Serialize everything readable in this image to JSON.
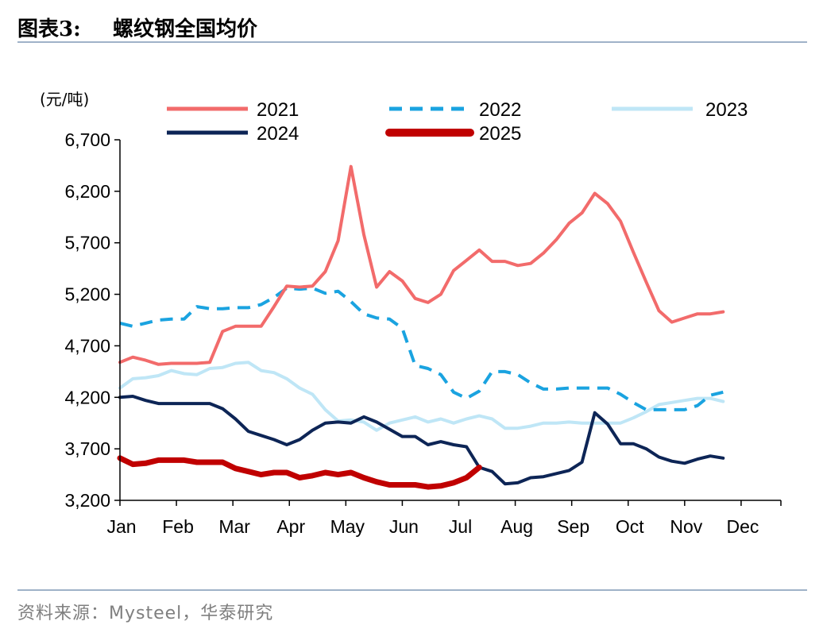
{
  "figure": {
    "label": "图表3:",
    "title": "螺纹钢全国均价"
  },
  "source": "资料来源：Mysteel，华泰研究",
  "colors": {
    "2021": "#f26b6b",
    "2022": "#1aa3e0",
    "2023": "#bfe6f6",
    "2024": "#0d2556",
    "2025": "#c00000",
    "axis": "#000000"
  },
  "chart_data": {
    "type": "line",
    "ylabel": "(元/吨)",
    "ylim": [
      3200,
      6700
    ],
    "yticks": [
      3200,
      3700,
      4200,
      4700,
      5200,
      5700,
      6200,
      6700
    ],
    "ytick_labels": [
      "3,200",
      "3,700",
      "4,200",
      "4,700",
      "5,200",
      "5,700",
      "6,200",
      "6,700"
    ],
    "xlim": [
      1,
      52.5
    ],
    "months": [
      {
        "label": "Jan",
        "week": 1
      },
      {
        "label": "Feb",
        "week": 5.4
      },
      {
        "label": "Mar",
        "week": 9.8
      },
      {
        "label": "Apr",
        "week": 14.2
      },
      {
        "label": "May",
        "week": 18.6
      },
      {
        "label": "Jun",
        "week": 23
      },
      {
        "label": "Jul",
        "week": 27.4
      },
      {
        "label": "Aug",
        "week": 31.8
      },
      {
        "label": "Sep",
        "week": 36.2
      },
      {
        "label": "Oct",
        "week": 40.6
      },
      {
        "label": "Nov",
        "week": 45
      },
      {
        "label": "Dec",
        "week": 49.4
      }
    ],
    "legend": [
      "2021",
      "2022",
      "2023",
      "2024",
      "2025"
    ],
    "series": [
      {
        "name": "2021",
        "style": "solid",
        "width": 4,
        "x": [
          1,
          2,
          3,
          4,
          5,
          6,
          7,
          8,
          9,
          10,
          11,
          12,
          13,
          14,
          15,
          16,
          17,
          18,
          19,
          20,
          21,
          22,
          23,
          24,
          25,
          26,
          27,
          28,
          29,
          30,
          31,
          32,
          33,
          34,
          35,
          36,
          37,
          38,
          39,
          40,
          41,
          42,
          43,
          44,
          45,
          46,
          47,
          48,
          49,
          50,
          51,
          52,
          53
        ],
        "values": [
          4540,
          4590,
          4560,
          4520,
          4530,
          4530,
          4530,
          4540,
          4840,
          4890,
          4890,
          4890,
          5080,
          5280,
          5270,
          5280,
          5420,
          5720,
          6440,
          5780,
          5270,
          5420,
          5330,
          5160,
          5120,
          5200,
          5430,
          5530,
          5630,
          5520,
          5520,
          5480,
          5500,
          5600,
          5730,
          5890,
          5990,
          6180,
          6080,
          5910,
          5610,
          5320,
          5040,
          4930,
          4970,
          5010,
          5010,
          5030,
          null,
          null,
          null,
          null,
          null
        ]
      },
      {
        "name": "2022",
        "style": "dashed",
        "width": 4,
        "x": [
          1,
          2,
          3,
          4,
          5,
          6,
          7,
          8,
          9,
          10,
          11,
          12,
          13,
          14,
          15,
          16,
          17,
          18,
          19,
          20,
          21,
          22,
          23,
          24,
          25,
          26,
          27,
          28,
          29,
          30,
          31,
          32,
          33,
          34,
          35,
          36,
          37,
          38,
          39,
          40,
          41,
          42,
          43,
          44,
          45,
          46,
          47,
          48,
          49,
          50,
          51,
          52
        ],
        "values": [
          4920,
          4890,
          4920,
          4950,
          4960,
          4960,
          5080,
          5060,
          5060,
          5070,
          5070,
          5100,
          5170,
          5260,
          5250,
          5260,
          5210,
          5230,
          5130,
          5010,
          4970,
          4960,
          4870,
          4510,
          4480,
          4420,
          4250,
          4190,
          4260,
          4450,
          4450,
          4420,
          4340,
          4280,
          4280,
          4290,
          4290,
          4290,
          4290,
          4230,
          4150,
          4080,
          4080,
          4080,
          4080,
          4120,
          4220,
          4250,
          null,
          null,
          null,
          null
        ]
      },
      {
        "name": "2023",
        "style": "solid",
        "width": 4,
        "x": [
          1,
          2,
          3,
          4,
          5,
          6,
          7,
          8,
          9,
          10,
          11,
          12,
          13,
          14,
          15,
          16,
          17,
          18,
          19,
          20,
          21,
          22,
          23,
          24,
          25,
          26,
          27,
          28,
          29,
          30,
          31,
          32,
          33,
          34,
          35,
          36,
          37,
          38,
          39,
          40,
          41,
          42,
          43,
          44,
          45,
          46,
          47,
          48,
          49,
          50,
          51,
          52
        ],
        "values": [
          4290,
          4380,
          4390,
          4410,
          4460,
          4430,
          4420,
          4480,
          4490,
          4530,
          4540,
          4460,
          4440,
          4380,
          4290,
          4230,
          4080,
          3970,
          3980,
          3960,
          3880,
          3950,
          3980,
          4010,
          3960,
          3990,
          3950,
          3990,
          4020,
          3990,
          3900,
          3900,
          3920,
          3950,
          3950,
          3960,
          3950,
          3950,
          3950,
          3950,
          4000,
          4060,
          4130,
          4150,
          4170,
          4190,
          4190,
          4160,
          null,
          null,
          null,
          null
        ]
      },
      {
        "name": "2024",
        "style": "solid",
        "width": 4,
        "x": [
          1,
          2,
          3,
          4,
          5,
          6,
          7,
          8,
          9,
          10,
          11,
          12,
          13,
          14,
          15,
          16,
          17,
          18,
          19,
          20,
          21,
          22,
          23,
          24,
          25,
          26,
          27,
          28,
          29,
          30,
          31,
          32,
          33,
          34,
          35,
          36,
          37,
          38,
          39,
          40,
          41,
          42,
          43,
          44,
          45,
          46,
          47,
          48,
          49,
          50,
          51,
          52
        ],
        "values": [
          4200,
          4210,
          4170,
          4140,
          4140,
          4140,
          4140,
          4140,
          4090,
          3990,
          3870,
          3830,
          3790,
          3740,
          3790,
          3880,
          3950,
          3960,
          3950,
          4010,
          3960,
          3890,
          3820,
          3820,
          3740,
          3770,
          3740,
          3720,
          3520,
          3480,
          3360,
          3370,
          3420,
          3430,
          3460,
          3490,
          3570,
          4050,
          3940,
          3750,
          3750,
          3700,
          3620,
          3580,
          3560,
          3600,
          3630,
          3610,
          null,
          null,
          null,
          null
        ]
      },
      {
        "name": "2025",
        "style": "solid",
        "width": 7,
        "x": [
          1,
          2,
          3,
          4,
          5,
          6,
          7,
          8,
          9,
          10,
          11,
          12,
          13,
          14,
          15,
          16,
          17,
          18,
          19,
          20,
          21,
          22,
          23,
          24,
          25,
          26,
          27,
          28,
          29,
          30
        ],
        "values": [
          3610,
          3550,
          3560,
          3590,
          3590,
          3590,
          3570,
          3570,
          3570,
          3510,
          3480,
          3450,
          3470,
          3470,
          3420,
          3440,
          3470,
          3450,
          3470,
          3420,
          3380,
          3350,
          3350,
          3350,
          3330,
          3340,
          3370,
          3420,
          3520,
          null
        ]
      }
    ]
  }
}
